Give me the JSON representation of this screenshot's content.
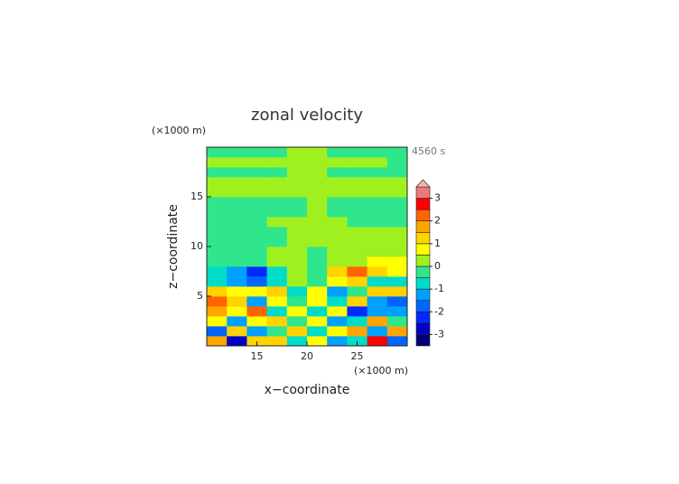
{
  "chart_data": {
    "type": "heatmap",
    "title": "zonal velocity",
    "time_label": "4560 s",
    "xlabel": "x−coordinate",
    "ylabel": "z−coordinate",
    "x_unit": "(×1000 m)",
    "y_unit": "(×1000 m)",
    "x": [
      11,
      13,
      15,
      17,
      19,
      21,
      23,
      25,
      27,
      29
    ],
    "y": [
      0.5,
      1.5,
      2.5,
      3.5,
      4.5,
      5.5,
      6.5,
      7.5,
      8.5,
      9.5,
      10.5,
      11.5,
      12.5,
      13.5,
      14.5,
      15.5,
      16.5,
      17.5,
      18.5,
      19.5
    ],
    "z": [
      [
        1.7,
        -2.6,
        1.0,
        1.4,
        -0.8,
        0.8,
        -1.4,
        -1.0,
        2.6,
        -1.7
      ],
      [
        -1.6,
        1.2,
        -1.5,
        -0.5,
        1.0,
        -1.0,
        0.5,
        1.5,
        -1.2,
        1.6
      ],
      [
        0.5,
        -1.5,
        0.8,
        1.3,
        -0.5,
        0.5,
        -1.3,
        -0.8,
        1.5,
        -0.5
      ],
      [
        1.5,
        0.7,
        2.1,
        -0.8,
        0.7,
        -0.7,
        0.8,
        -2.1,
        -1.2,
        -1.5
      ],
      [
        2.1,
        1.3,
        -1.3,
        0.9,
        -0.4,
        0.5,
        -0.9,
        1.3,
        -1.5,
        -1.9
      ],
      [
        1.2,
        0.6,
        0.8,
        1.3,
        -0.6,
        0.6,
        -1.3,
        -0.5,
        1.1,
        1.2
      ],
      [
        -0.6,
        -1.3,
        -1.6,
        -0.6,
        0.4,
        -0.4,
        0.8,
        1.3,
        -0.8,
        -0.6
      ],
      [
        -0.8,
        -1.2,
        -2.2,
        -1,
        0.3,
        -0.3,
        1.2,
        2.3,
        1.4,
        0.9
      ],
      [
        -0.3,
        -0.4,
        -0.3,
        0.2,
        0.2,
        -0.3,
        0.3,
        0.4,
        0.6,
        0.7
      ],
      [
        -0.2,
        -0.2,
        -0.2,
        0.2,
        0.2,
        -0.2,
        0.2,
        0.2,
        0.2,
        0.2
      ],
      [
        -0.2,
        -0.2,
        -0.2,
        -0.2,
        0.2,
        0.2,
        0.2,
        0.2,
        0.2,
        0.2
      ],
      [
        -0.2,
        -0.2,
        -0.2,
        -0.2,
        0.2,
        0.2,
        0.2,
        0.2,
        0.2,
        0.2
      ],
      [
        -0.2,
        -0.2,
        -0.2,
        0.2,
        0.2,
        0.2,
        0.2,
        -0.2,
        -0.2,
        -0.2
      ],
      [
        -0.2,
        -0.2,
        -0.2,
        -0.2,
        -0.2,
        0.2,
        -0.2,
        -0.2,
        -0.2,
        -0.2
      ],
      [
        -0.2,
        -0.2,
        -0.2,
        -0.2,
        -0.2,
        0.2,
        -0.2,
        -0.2,
        -0.2,
        -0.2
      ],
      [
        0.2,
        0.2,
        0.2,
        0.2,
        0.2,
        0.2,
        0.2,
        0.2,
        0.2,
        0.2
      ],
      [
        0.2,
        0.2,
        0.2,
        0.2,
        0.2,
        0.2,
        0.2,
        0.2,
        0.2,
        0.2
      ],
      [
        -0.2,
        -0.2,
        -0.2,
        -0.2,
        0.2,
        0.2,
        -0.2,
        -0.2,
        -0.2,
        -0.2
      ],
      [
        0.2,
        0.2,
        0.2,
        0.2,
        0.2,
        0.2,
        0.2,
        0.2,
        0.2,
        -0.2
      ],
      [
        -0.2,
        -0.2,
        -0.2,
        -0.2,
        0.2,
        0.2,
        -0.2,
        -0.2,
        -0.2,
        -0.2
      ]
    ],
    "xlim": [
      10,
      30
    ],
    "ylim": [
      0,
      20
    ],
    "xticks": [
      15,
      20,
      25
    ],
    "yticks": [
      5,
      10,
      15
    ],
    "levels": [
      -3.5,
      -3,
      -2.5,
      -2,
      -1.5,
      -1,
      -0.5,
      0,
      0.5,
      1,
      1.5,
      2,
      2.5,
      3,
      3.5
    ],
    "colors": [
      "#00007a",
      "#0000c8",
      "#0028ff",
      "#0064ff",
      "#00a0ff",
      "#00dcc8",
      "#30e68c",
      "#a0f020",
      "#ffff00",
      "#ffd200",
      "#ffa500",
      "#ff6400",
      "#ff0000",
      "#f07878"
    ],
    "over_color": "#f4b4b4",
    "cbticks": [
      -3,
      -2,
      -1,
      0,
      1,
      2,
      3
    ]
  }
}
